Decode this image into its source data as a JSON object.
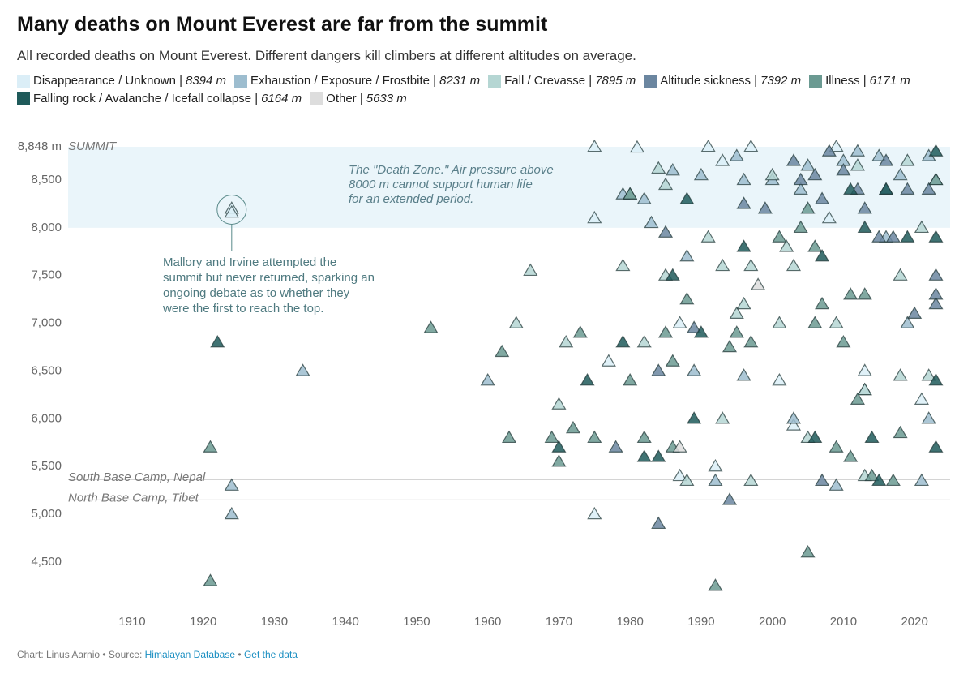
{
  "chart_data": {
    "type": "scatter",
    "title": "Many deaths on Mount Everest are far from the summit",
    "subtitle": "All recorded deaths on Mount Everest. Different dangers kill climbers at different altitudes on average.",
    "xlim": [
      1901,
      2025
    ],
    "xticks": [
      1910,
      1920,
      1930,
      1940,
      1950,
      1960,
      1970,
      1980,
      1990,
      2000,
      2010,
      2020
    ],
    "ylim": [
      4100,
      8950
    ],
    "yticks": [
      {
        "value": 4500,
        "label": "4,500"
      },
      {
        "value": 5000,
        "label": "5,000"
      },
      {
        "value": 5500,
        "label": "5,500"
      },
      {
        "value": 6000,
        "label": "6,000"
      },
      {
        "value": 6500,
        "label": "6,500"
      },
      {
        "value": 7000,
        "label": "7,000"
      },
      {
        "value": 7500,
        "label": "7,500"
      },
      {
        "value": 8000,
        "label": "8,000"
      },
      {
        "value": 8500,
        "label": "8,500"
      },
      {
        "value": 8848,
        "label": "8,848 m"
      }
    ],
    "summit_label": "SUMMIT",
    "death_zone": {
      "ylim": [
        8000,
        8848
      ],
      "lines": [
        "The \"Death Zone.\" Air pressure above",
        "8000 m cannot support human life",
        "for an extended period."
      ]
    },
    "base_camps": [
      {
        "text": "South Base Camp, Nepal",
        "y": 5364
      },
      {
        "text": "North Base Camp, Tibet",
        "y": 5150
      }
    ],
    "mallory": {
      "x": 1924,
      "y": 8190,
      "lines": [
        "Mallory and Irvine attempted the",
        "summit but never returned, sparking an",
        "ongoing debate as to whether they",
        "were the first to reach the top."
      ]
    },
    "series": [
      {
        "name": "Disappearance / Unknown |",
        "legend_note": "8394 m",
        "color": "#dbeef7",
        "x": [
          1924,
          1924,
          1975,
          1975,
          1991,
          1975,
          1992,
          2013,
          2013,
          2021,
          2009,
          1997,
          1993,
          1987,
          1977,
          2001,
          2003,
          2008,
          2023,
          1981,
          1987
        ],
        "values": [
          8200,
          8160,
          8848,
          8100,
          8848,
          5000,
          5500,
          6300,
          6500,
          6200,
          8848,
          8848,
          8700,
          7000,
          6600,
          6400,
          5930,
          8100,
          8500,
          8840,
          5400
        ]
      },
      {
        "name": "Exhaustion / Exposure / Frostbite |",
        "legend_note": "8231 m",
        "color": "#9dbdcf",
        "x": [
          1934,
          1924,
          1924,
          1960,
          1979,
          1986,
          1990,
          1996,
          2000,
          2005,
          2010,
          2015,
          2018,
          2022,
          1982,
          1983,
          1995,
          2019,
          2021,
          2022,
          1992,
          2003,
          2009,
          1989,
          1996,
          2012,
          1988,
          2004,
          2016
        ],
        "values": [
          6500,
          5300,
          5000,
          6400,
          8350,
          8600,
          8550,
          8500,
          8500,
          8650,
          8700,
          8750,
          8550,
          8750,
          8300,
          8050,
          8750,
          7000,
          5350,
          6000,
          5350,
          6000,
          5300,
          6500,
          6450,
          8800,
          7700,
          8400,
          7900
        ]
      },
      {
        "name": "Fall / Crevasse |",
        "legend_note": "7895 m",
        "color": "#b5d6d3",
        "x": [
          1966,
          1964,
          1970,
          1971,
          1979,
          1985,
          1993,
          1997,
          2001,
          2003,
          2018,
          2013,
          1988,
          2022,
          2018,
          2000,
          1980,
          2012,
          1985,
          1984,
          1991,
          1995,
          1996,
          2019,
          2002,
          2009,
          2013,
          1982,
          1993,
          1997,
          2005,
          2021
        ],
        "values": [
          7550,
          7000,
          6150,
          6800,
          7600,
          7500,
          7600,
          7600,
          7000,
          7600,
          7500,
          5400,
          5350,
          6450,
          6450,
          8550,
          8350,
          8650,
          8450,
          8620,
          7900,
          7100,
          7200,
          8700,
          7800,
          7000,
          6300,
          6800,
          6000,
          5350,
          5800,
          8000
        ]
      },
      {
        "name": "Altitude sickness |",
        "legend_note": "7392 m",
        "color": "#6b86a0",
        "x": [
          2023,
          2023,
          2015,
          2017,
          2016,
          2019,
          2020,
          2010,
          2003,
          2004,
          2007,
          2008,
          1996,
          1999,
          1985,
          2022,
          2006,
          1989,
          1978,
          1984,
          1984,
          1994,
          2007,
          2012,
          2016,
          2023,
          2013
        ],
        "values": [
          7300,
          7200,
          7900,
          7900,
          8400,
          8400,
          7100,
          8600,
          8700,
          8500,
          8300,
          8800,
          8250,
          8200,
          7950,
          8400,
          8550,
          6950,
          5700,
          6500,
          4900,
          5150,
          5350,
          8400,
          8700,
          7500,
          8200
        ]
      },
      {
        "name": "Illness |",
        "legend_note": "6171 m",
        "color": "#6b9a92",
        "x": [
          1921,
          1921,
          1963,
          1962,
          1952,
          1969,
          1970,
          1972,
          1973,
          1975,
          1980,
          1982,
          1986,
          1985,
          1986,
          1988,
          1992,
          1994,
          1995,
          1997,
          2001,
          2004,
          2005,
          2006,
          2007,
          2009,
          2010,
          2011,
          2012,
          2013,
          2014,
          2017,
          2018,
          2006,
          2005,
          2023,
          2011,
          1980
        ],
        "values": [
          5700,
          4300,
          5800,
          6700,
          6950,
          5800,
          5550,
          5900,
          6900,
          5800,
          6400,
          5800,
          5700,
          6900,
          6600,
          7250,
          4250,
          6750,
          6900,
          6800,
          7900,
          8000,
          4600,
          7000,
          7200,
          5700,
          6800,
          7300,
          6200,
          7300,
          5400,
          5350,
          5850,
          7800,
          8200,
          8500,
          5600,
          8350
        ]
      },
      {
        "name": "Falling rock / Avalanche / Icefall collapse |",
        "legend_note": "6164 m",
        "color": "#1f5a5a",
        "x": [
          1922,
          1970,
          1974,
          1979,
          1982,
          1984,
          1986,
          1989,
          1990,
          1996,
          2006,
          2007,
          2014,
          2015,
          2023,
          2023,
          2023,
          2023,
          2019,
          2013,
          1988,
          2011,
          2016
        ],
        "values": [
          6800,
          5700,
          6400,
          6800,
          5600,
          5600,
          7500,
          6000,
          6900,
          7800,
          5800,
          7700,
          5800,
          5350,
          5700,
          6400,
          7900,
          8800,
          7900,
          8000,
          8300,
          8400,
          8400
        ]
      },
      {
        "name": "Other |",
        "legend_note": "5633 m",
        "color": "#dddddd",
        "x": [
          1998,
          1987
        ],
        "values": [
          7400,
          5700
        ]
      }
    ],
    "credit": "Chart: Linus Aarnio • Source:",
    "source_link": "Himalayan Database",
    "separator": "•",
    "data_link": "Get the data"
  }
}
